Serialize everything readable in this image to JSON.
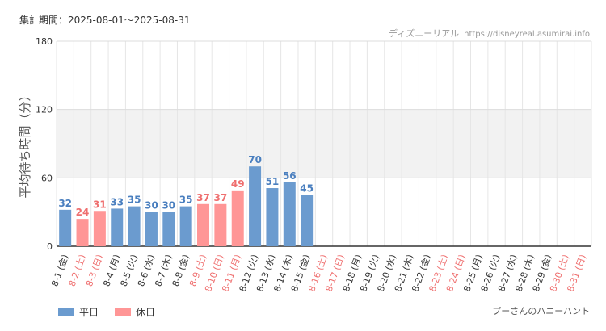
{
  "header": {
    "period_label": "集計期間：",
    "period_value": "2025-08-01～2025-08-31",
    "site_name": "ディズニーリアル",
    "site_url": "https://disneyreal.asumirai.info"
  },
  "footer": {
    "attraction_name": "プーさんのハニーハント"
  },
  "colors": {
    "weekday": "#6b9bcf",
    "holiday": "#ff9696",
    "weekday_text": "#4a7fbf",
    "holiday_text": "#ef6f6f",
    "band": "#f2f2f2",
    "grid": "#e6e6e6"
  },
  "chart_data": {
    "type": "bar",
    "ylabel": "平均待ち時間（分）",
    "ylim": [
      0,
      180
    ],
    "yticks": [
      0,
      60,
      120,
      180
    ],
    "band": [
      60,
      120
    ],
    "legend": [
      {
        "name": "平日",
        "kind": "weekday"
      },
      {
        "name": "休日",
        "kind": "holiday"
      }
    ],
    "legend_position": "bottom-left",
    "categories": [
      "8-1 (金)",
      "8-2 (土)",
      "8-3 (日)",
      "8-4 (月)",
      "8-5 (火)",
      "8-6 (水)",
      "8-7 (木)",
      "8-8 (金)",
      "8-9 (土)",
      "8-10 (日)",
      "8-11 (月)",
      "8-12 (火)",
      "8-13 (水)",
      "8-14 (木)",
      "8-15 (金)",
      "8-16 (土)",
      "8-17 (日)",
      "8-18 (月)",
      "8-19 (火)",
      "8-20 (水)",
      "8-21 (木)",
      "8-22 (金)",
      "8-23 (土)",
      "8-24 (日)",
      "8-25 (月)",
      "8-26 (火)",
      "8-27 (水)",
      "8-28 (木)",
      "8-29 (金)",
      "8-30 (土)",
      "8-31 (日)"
    ],
    "holiday": [
      false,
      true,
      true,
      false,
      false,
      false,
      false,
      false,
      true,
      true,
      true,
      false,
      false,
      false,
      false,
      true,
      true,
      false,
      false,
      false,
      false,
      false,
      true,
      true,
      false,
      false,
      false,
      false,
      false,
      true,
      true
    ],
    "values": [
      32,
      24,
      31,
      33,
      35,
      30,
      30,
      35,
      37,
      37,
      49,
      70,
      51,
      56,
      45,
      null,
      null,
      null,
      null,
      null,
      null,
      null,
      null,
      null,
      null,
      null,
      null,
      null,
      null,
      null,
      null
    ]
  }
}
